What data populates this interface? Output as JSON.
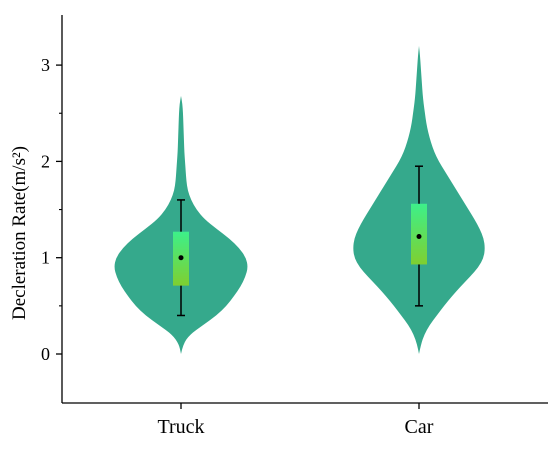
{
  "chart_data": {
    "type": "violin",
    "ylabel": "Decleration Rate(m/s²)",
    "categories": [
      "Truck",
      "Car"
    ],
    "ylim": [
      -0.5,
      3.5
    ],
    "y_ticks": [
      0,
      1,
      2,
      3
    ],
    "y_minor_ticks": [
      0.5,
      1.5,
      2.5
    ],
    "grid": false,
    "colors": {
      "violin": "#35a98c",
      "box_top": "#3df08a",
      "box_bottom": "#7fcf30",
      "whisker": "#000000",
      "mean": "#000000"
    },
    "series": [
      {
        "category": "Truck",
        "violin": {
          "y": [
            0.0,
            0.1,
            0.2,
            0.3,
            0.4,
            0.5,
            0.6,
            0.7,
            0.8,
            0.9,
            1.0,
            1.1,
            1.2,
            1.3,
            1.4,
            1.5,
            1.6,
            1.7,
            1.8,
            1.9,
            2.0,
            2.1,
            2.2,
            2.3,
            2.4,
            2.5,
            2.6,
            2.68
          ],
          "width": [
            0.0,
            0.03,
            0.13,
            0.33,
            0.53,
            0.68,
            0.79,
            0.89,
            0.96,
            1.0,
            0.97,
            0.87,
            0.72,
            0.53,
            0.35,
            0.23,
            0.15,
            0.1,
            0.08,
            0.07,
            0.06,
            0.05,
            0.045,
            0.04,
            0.035,
            0.03,
            0.02,
            0.0
          ]
        },
        "whisker_low": 0.4,
        "q1": 0.71,
        "q3": 1.27,
        "whisker_high": 1.6,
        "mean": 1.0
      },
      {
        "category": "Car",
        "violin": {
          "y": [
            0.0,
            0.1,
            0.2,
            0.3,
            0.4,
            0.5,
            0.6,
            0.7,
            0.8,
            0.9,
            1.0,
            1.1,
            1.2,
            1.3,
            1.4,
            1.5,
            1.6,
            1.7,
            1.8,
            1.9,
            2.0,
            2.1,
            2.2,
            2.3,
            2.4,
            2.5,
            2.6,
            2.7,
            2.8,
            2.9,
            3.0,
            3.1,
            3.2
          ],
          "width": [
            0.0,
            0.03,
            0.08,
            0.16,
            0.27,
            0.38,
            0.5,
            0.63,
            0.77,
            0.9,
            0.98,
            1.0,
            0.98,
            0.92,
            0.84,
            0.75,
            0.66,
            0.57,
            0.48,
            0.39,
            0.3,
            0.23,
            0.18,
            0.14,
            0.11,
            0.09,
            0.07,
            0.055,
            0.045,
            0.035,
            0.025,
            0.015,
            0.0
          ]
        },
        "whisker_low": 0.5,
        "q1": 0.93,
        "q3": 1.56,
        "whisker_high": 1.95,
        "mean": 1.22
      }
    ]
  }
}
